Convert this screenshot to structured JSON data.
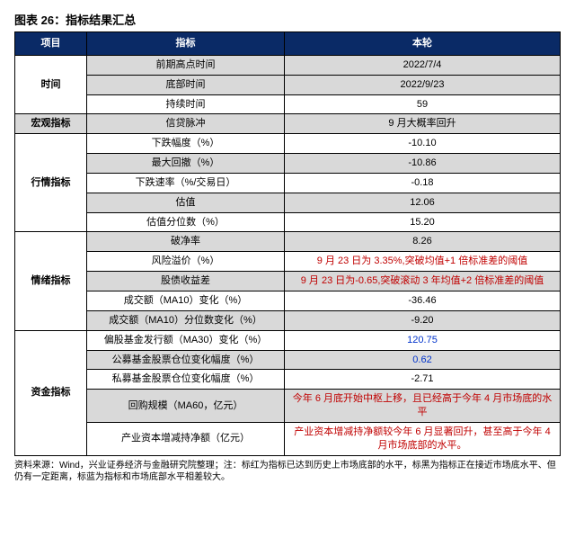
{
  "caption": "图表 26：指标结果汇总",
  "headers": {
    "c1": "项目",
    "c2": "指标",
    "c3": "本轮"
  },
  "groups": [
    {
      "name": "时间",
      "rows": [
        {
          "label": "前期高点时间",
          "value": "2022/7/4",
          "shade": true
        },
        {
          "label": "底部时间",
          "value": "2022/9/23",
          "shade": true
        },
        {
          "label": "持续时间",
          "value": "59"
        }
      ]
    },
    {
      "name": "宏观指标",
      "name_shade": true,
      "rows": [
        {
          "label": "信贷脉冲",
          "value": "9 月大概率回升",
          "shade": true
        }
      ]
    },
    {
      "name": "行情指标",
      "rows": [
        {
          "label": "下跌幅度（%）",
          "value": "-10.10"
        },
        {
          "label": "最大回撤（%）",
          "value": "-10.86",
          "shade": true
        },
        {
          "label": "下跌速率（%/交易日）",
          "value": "-0.18"
        },
        {
          "label": "估值",
          "value": "12.06",
          "shade": true
        },
        {
          "label": "估值分位数（%）",
          "value": "15.20"
        }
      ]
    },
    {
      "name": "情绪指标",
      "rows": [
        {
          "label": "破净率",
          "value": "8.26",
          "shade": true
        },
        {
          "label": "风险溢价（%）",
          "value": "9 月 23 日为 3.35%,突破均值+1 倍标准差的阈值",
          "value_color": "red"
        },
        {
          "label": "股债收益差",
          "value": "9 月 23 日为-0.65,突破滚动 3 年均值+2 倍标准差的阈值",
          "value_color": "red",
          "shade": true
        },
        {
          "label": "成交额（MA10）变化（%）",
          "value": "-36.46"
        },
        {
          "label": "成交额（MA10）分位数变化（%）",
          "value": "-9.20",
          "shade": true
        }
      ]
    },
    {
      "name": "资金指标",
      "rows": [
        {
          "label": "偏股基金发行额（MA30）变化（%）",
          "value": "120.75",
          "value_color": "blue"
        },
        {
          "label": "公募基金股票仓位变化幅度（%）",
          "value": "0.62",
          "value_color": "blue",
          "shade": true
        },
        {
          "label": "私募基金股票仓位变化幅度（%）",
          "value": "-2.71"
        },
        {
          "label": "回购规模（MA60，亿元）",
          "value": "今年 6 月底开始中枢上移，且已经高于今年 4 月市场底的水平",
          "value_color": "red",
          "shade": true
        },
        {
          "label": "产业资本增减持净额（亿元）",
          "value": "产业资本增减持净额较今年 6 月显著回升，甚至高于今年 4 月市场底部的水平。",
          "value_color": "red"
        }
      ]
    }
  ],
  "footnote": "资料来源：Wind，兴业证券经济与金融研究院整理；注：标红为指标已达到历史上市场底部的水平，标黑为指标正在接近市场底水平、但仍有一定距离，标蓝为指标和市场底部水平相差较大。"
}
